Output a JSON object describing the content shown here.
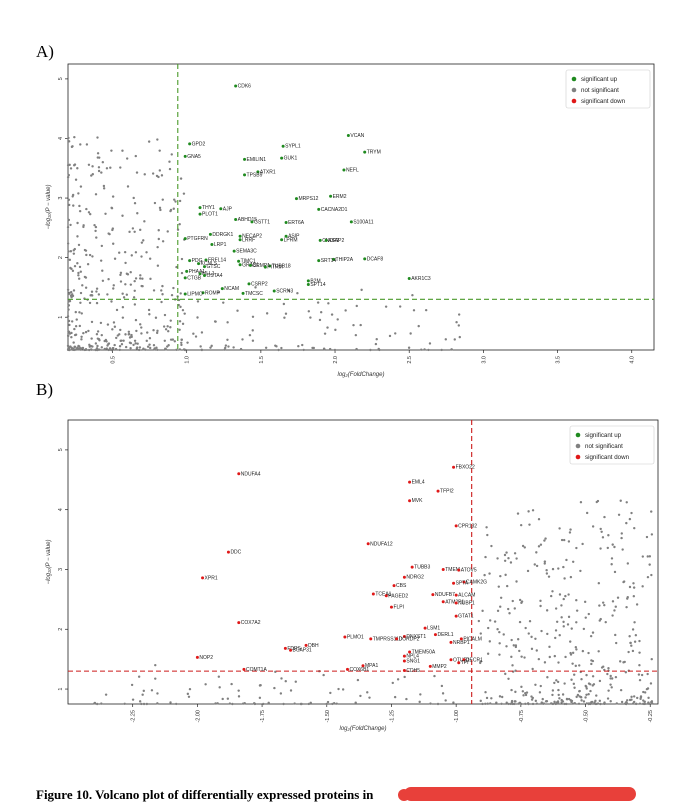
{
  "panels": {
    "a_label": "A)",
    "b_label": "B)"
  },
  "legend": {
    "up": "significant up",
    "ns": "not significant",
    "down": "significant down"
  },
  "colors": {
    "up": "#1f8a1f",
    "ns": "#808080",
    "down": "#e01818",
    "threshold_a": "#4a9a2a",
    "threshold_b": "#cc1b1b"
  },
  "caption": "Figure 10. Volcano plot of differentially expressed proteins in",
  "chart_data": [
    {
      "type": "scatter",
      "xlabel": "log₂(FoldChange)",
      "ylabel": "−log₁₀(P − value)",
      "xlim": [
        0.2,
        4.15
      ],
      "ylim": [
        0.45,
        5.25
      ],
      "xticks": [
        0.5,
        1.0,
        1.5,
        2.0,
        2.5,
        3.0,
        3.5,
        4.0
      ],
      "xtick_labels": [
        "0.5",
        "1.0",
        "1.5",
        "2.0",
        "2.5",
        "3.0",
        "3.5",
        "4.0"
      ],
      "yticks": [
        1,
        2,
        3,
        4,
        5
      ],
      "ytick_labels": [
        "1",
        "2",
        "3",
        "4",
        "5"
      ],
      "threshold_x": 0.94,
      "threshold_y": 1.3,
      "legend_position": "top-right",
      "labeled_points": [
        {
          "label": "CDK6",
          "x": 1.33,
          "y": 4.88
        },
        {
          "label": "GPD2",
          "x": 1.02,
          "y": 3.91
        },
        {
          "label": "GNA5",
          "x": 0.99,
          "y": 3.7
        },
        {
          "label": "VCAN",
          "x": 2.09,
          "y": 4.05
        },
        {
          "label": "SYPL1",
          "x": 1.65,
          "y": 3.87
        },
        {
          "label": "TRYM",
          "x": 2.2,
          "y": 3.77
        },
        {
          "label": "GUK1",
          "x": 1.64,
          "y": 3.67
        },
        {
          "label": "EMILIN1",
          "x": 1.39,
          "y": 3.65
        },
        {
          "label": "ATXR1",
          "x": 1.48,
          "y": 3.44
        },
        {
          "label": "NEFL",
          "x": 2.06,
          "y": 3.47
        },
        {
          "label": "TPSB9",
          "x": 1.39,
          "y": 3.39
        },
        {
          "label": "ERM2",
          "x": 1.97,
          "y": 3.03
        },
        {
          "label": "MRPS12",
          "x": 1.74,
          "y": 2.99
        },
        {
          "label": "THY1",
          "x": 1.09,
          "y": 2.84
        },
        {
          "label": "AJP",
          "x": 1.23,
          "y": 2.82
        },
        {
          "label": "CACNA2D1",
          "x": 1.89,
          "y": 2.81
        },
        {
          "label": "PLOT1",
          "x": 1.09,
          "y": 2.73
        },
        {
          "label": "ABHD15",
          "x": 1.33,
          "y": 2.64
        },
        {
          "label": "GSTT1",
          "x": 1.44,
          "y": 2.6
        },
        {
          "label": "ERT6A",
          "x": 1.67,
          "y": 2.59
        },
        {
          "label": "S100A11",
          "x": 2.11,
          "y": 2.6
        },
        {
          "label": "DDRGK1",
          "x": 1.16,
          "y": 2.39
        },
        {
          "label": "NECAP2",
          "x": 1.36,
          "y": 2.36
        },
        {
          "label": "ASIP",
          "x": 1.67,
          "y": 2.36
        },
        {
          "label": "PTGFRN",
          "x": 0.99,
          "y": 2.32
        },
        {
          "label": "LRRF",
          "x": 1.36,
          "y": 2.3
        },
        {
          "label": "LPRM",
          "x": 1.64,
          "y": 2.3
        },
        {
          "label": "CNDP2",
          "x": 1.9,
          "y": 2.29
        },
        {
          "label": "ASAP2",
          "x": 1.94,
          "y": 2.29
        },
        {
          "label": "LRP1",
          "x": 1.17,
          "y": 2.22
        },
        {
          "label": "SEMA3C",
          "x": 1.32,
          "y": 2.11
        },
        {
          "label": "DCAF8",
          "x": 2.2,
          "y": 1.98
        },
        {
          "label": "THIP2A",
          "x": 1.99,
          "y": 1.97
        },
        {
          "label": "SRT14",
          "x": 1.89,
          "y": 1.95
        },
        {
          "label": "FRFL14",
          "x": 1.13,
          "y": 1.96
        },
        {
          "label": "PDG",
          "x": 1.02,
          "y": 1.95
        },
        {
          "label": "TIMC1",
          "x": 1.35,
          "y": 1.94
        },
        {
          "label": "KCNLS",
          "x": 1.08,
          "y": 1.9
        },
        {
          "label": "GRAS1",
          "x": 1.36,
          "y": 1.88
        },
        {
          "label": "CRMP1",
          "x": 1.43,
          "y": 1.87
        },
        {
          "label": "TUBB18",
          "x": 1.56,
          "y": 1.86
        },
        {
          "label": "PITRM",
          "x": 1.53,
          "y": 1.84
        },
        {
          "label": "GTSC",
          "x": 1.12,
          "y": 1.85
        },
        {
          "label": "PHAA1",
          "x": 1.0,
          "y": 1.77
        },
        {
          "label": "MLL1",
          "x": 1.09,
          "y": 1.73
        },
        {
          "label": "OSTA4",
          "x": 1.12,
          "y": 1.7
        },
        {
          "label": "AKR1C3",
          "x": 2.5,
          "y": 1.65
        },
        {
          "label": "CTGB",
          "x": 0.99,
          "y": 1.66
        },
        {
          "label": "B2M",
          "x": 1.82,
          "y": 1.61
        },
        {
          "label": "CSRP2",
          "x": 1.42,
          "y": 1.56
        },
        {
          "label": "SPT14",
          "x": 1.82,
          "y": 1.55
        },
        {
          "label": "NCAM",
          "x": 1.24,
          "y": 1.48
        },
        {
          "label": "SCRN3",
          "x": 1.59,
          "y": 1.44
        },
        {
          "label": "ROMP",
          "x": 1.11,
          "y": 1.41
        },
        {
          "label": "LIPMO",
          "x": 0.99,
          "y": 1.39
        },
        {
          "label": "TMCSC",
          "x": 1.38,
          "y": 1.4
        }
      ]
    },
    {
      "type": "scatter",
      "xlabel": "log₂(FoldChange)",
      "ylabel": "−log₁₀(P − value)",
      "xlim": [
        -2.5,
        -0.22
      ],
      "ylim": [
        0.75,
        5.5
      ],
      "xticks": [
        -2.25,
        -2.0,
        -1.75,
        -1.5,
        -1.25,
        -1.0,
        -0.75,
        -0.5,
        -0.25
      ],
      "xtick_labels": [
        "-2.25",
        "-2.00",
        "-1.75",
        "-1.50",
        "-1.25",
        "-1.00",
        "-0.75",
        "-0.50",
        "-0.25"
      ],
      "yticks": [
        1,
        2,
        3,
        4,
        5
      ],
      "ytick_labels": [
        "1",
        "2",
        "3",
        "4",
        "5"
      ],
      "threshold_x": -0.94,
      "threshold_y": 1.3,
      "legend_position": "top-right",
      "labeled_points": [
        {
          "label": "FBXO22",
          "x": -1.01,
          "y": 4.71
        },
        {
          "label": "EML4",
          "x": -1.18,
          "y": 4.46
        },
        {
          "label": "NDUFA4",
          "x": -1.84,
          "y": 4.6
        },
        {
          "label": "TFPI2",
          "x": -1.07,
          "y": 4.31
        },
        {
          "label": "MVK",
          "x": -1.18,
          "y": 4.15
        },
        {
          "label": "CPR132",
          "x": -1.0,
          "y": 3.73
        },
        {
          "label": "NDUFA12",
          "x": -1.34,
          "y": 3.43
        },
        {
          "label": "DDC",
          "x": -1.88,
          "y": 3.29
        },
        {
          "label": "TUBB3",
          "x": -1.17,
          "y": 3.04
        },
        {
          "label": "TMEM",
          "x": -1.05,
          "y": 3.0
        },
        {
          "label": "ATOV5",
          "x": -0.99,
          "y": 2.99
        },
        {
          "label": "XPR1",
          "x": -1.98,
          "y": 2.86
        },
        {
          "label": "NDRG2",
          "x": -1.2,
          "y": 2.87
        },
        {
          "label": "CAMK2G",
          "x": -0.97,
          "y": 2.79
        },
        {
          "label": "SPTA",
          "x": -1.01,
          "y": 2.77
        },
        {
          "label": "CBS",
          "x": -1.24,
          "y": 2.73
        },
        {
          "label": "TCEA1",
          "x": -1.32,
          "y": 2.59
        },
        {
          "label": "NDUFB7",
          "x": -1.09,
          "y": 2.58
        },
        {
          "label": "ALCAM",
          "x": -1.0,
          "y": 2.57
        },
        {
          "label": "PAGED2",
          "x": -1.27,
          "y": 2.56
        },
        {
          "label": "ATM2P1",
          "x": -1.05,
          "y": 2.46
        },
        {
          "label": "NUBP1",
          "x": -1.0,
          "y": 2.44
        },
        {
          "label": "FLPI",
          "x": -1.25,
          "y": 2.37
        },
        {
          "label": "GTAT1",
          "x": -1.0,
          "y": 2.22
        },
        {
          "label": "COX7A2",
          "x": -1.84,
          "y": 2.11
        },
        {
          "label": "LSM1",
          "x": -1.12,
          "y": 2.02
        },
        {
          "label": "DERL1",
          "x": -1.08,
          "y": 1.91
        },
        {
          "label": "DNXST1",
          "x": -1.2,
          "y": 1.88
        },
        {
          "label": "PLMO1",
          "x": -1.43,
          "y": 1.87
        },
        {
          "label": "TMPRSS11D",
          "x": -1.33,
          "y": 1.84
        },
        {
          "label": "DORDP2",
          "x": -1.23,
          "y": 1.84
        },
        {
          "label": "NRBP1",
          "x": -1.02,
          "y": 1.78
        },
        {
          "label": "PICALM",
          "x": -0.98,
          "y": 1.84
        },
        {
          "label": "DBH",
          "x": -1.58,
          "y": 1.73
        },
        {
          "label": "FDPS",
          "x": -1.66,
          "y": 1.68
        },
        {
          "label": "BCAP31",
          "x": -1.64,
          "y": 1.65
        },
        {
          "label": "TMEM50A",
          "x": -1.18,
          "y": 1.62
        },
        {
          "label": "NPL4",
          "x": -1.2,
          "y": 1.55
        },
        {
          "label": "OTUB1",
          "x": -1.02,
          "y": 1.49
        },
        {
          "label": "DECR1",
          "x": -0.97,
          "y": 1.49
        },
        {
          "label": "NOP2",
          "x": -2.0,
          "y": 1.53
        },
        {
          "label": "SNG1",
          "x": -1.2,
          "y": 1.47
        },
        {
          "label": "MMP2",
          "x": -1.1,
          "y": 1.38
        },
        {
          "label": "MPA1",
          "x": -1.36,
          "y": 1.39
        },
        {
          "label": "COX6B1",
          "x": -1.42,
          "y": 1.33
        },
        {
          "label": "CDH5",
          "x": -1.2,
          "y": 1.31
        },
        {
          "label": "COMT1A",
          "x": -1.82,
          "y": 1.33
        },
        {
          "label": "TPI",
          "x": -0.99,
          "y": 1.44
        }
      ]
    }
  ]
}
